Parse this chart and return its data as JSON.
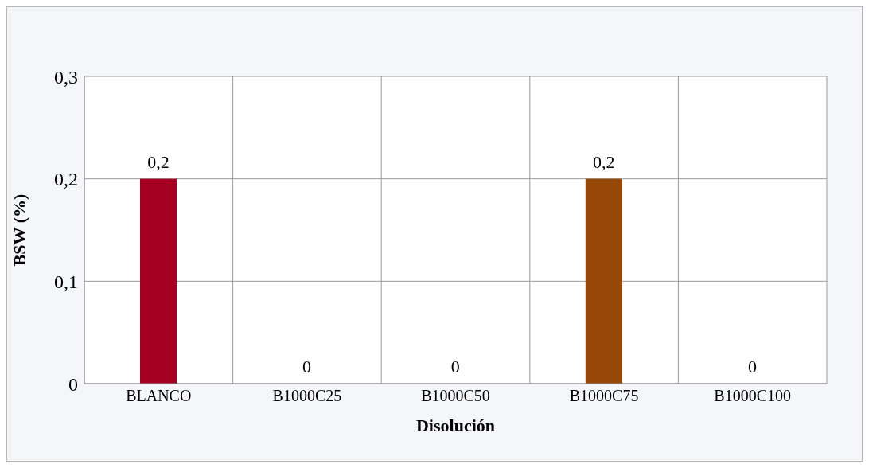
{
  "chart_data": {
    "type": "bar",
    "xlabel": "Disolución",
    "ylabel": "BSW (%)",
    "categories": [
      "BLANCO",
      "B1000C25",
      "B1000C50",
      "B1000C75",
      "B1000C100"
    ],
    "values": [
      0.2,
      0,
      0,
      0.2,
      0
    ],
    "colors": [
      "#a50021",
      "#a50021",
      "#a50021",
      "#974706",
      "#974706"
    ],
    "value_labels": [
      "0,2",
      "0",
      "0",
      "0,2",
      "0"
    ],
    "ylim": [
      0,
      0.3
    ],
    "yticks": [
      {
        "value": 0,
        "label": "0"
      },
      {
        "value": 0.1,
        "label": "0,1"
      },
      {
        "value": 0.2,
        "label": "0,2"
      },
      {
        "value": 0.3,
        "label": "0,3"
      }
    ],
    "grid": true
  }
}
